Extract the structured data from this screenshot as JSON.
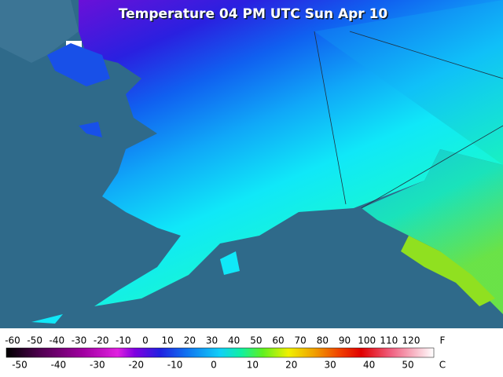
{
  "header": {
    "title": "Temperature 04 PM UTC Sun Apr 10"
  },
  "legend": {
    "fahrenheit_unit": "F",
    "celsius_unit": "C",
    "fahrenheit_labels": [
      -60,
      -50,
      -40,
      -30,
      -20,
      -10,
      0,
      10,
      20,
      30,
      40,
      50,
      60,
      70,
      80,
      90,
      100,
      110,
      120
    ],
    "celsius_labels": [
      -50,
      -40,
      -30,
      -20,
      -10,
      0,
      10,
      20,
      30,
      40,
      50
    ]
  }
}
